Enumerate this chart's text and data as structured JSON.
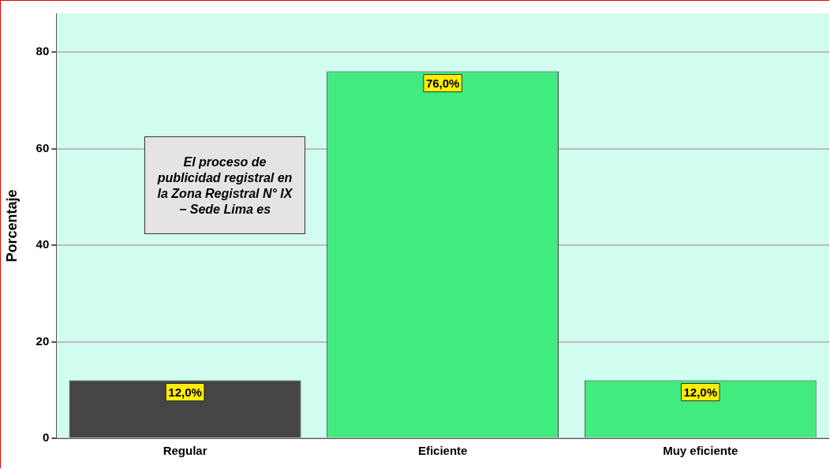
{
  "chart_data": {
    "type": "bar",
    "categories": [
      "Regular",
      "Eficiente",
      "Muy eficiente"
    ],
    "values": [
      12,
      76,
      12
    ],
    "colors": [
      "#454545",
      "#41eb7f",
      "#41eb7f"
    ],
    "value_labels": [
      "12,0%",
      "76,0%",
      "12,0%"
    ],
    "ylabel": "Porcentaje",
    "ylim": [
      0,
      88
    ],
    "yticks": [
      0,
      20,
      40,
      60,
      80
    ],
    "grid": "y",
    "annotations": [
      "El proceso de publicidad registral en la Zona Registral N° IX − Sede Lima es"
    ]
  }
}
